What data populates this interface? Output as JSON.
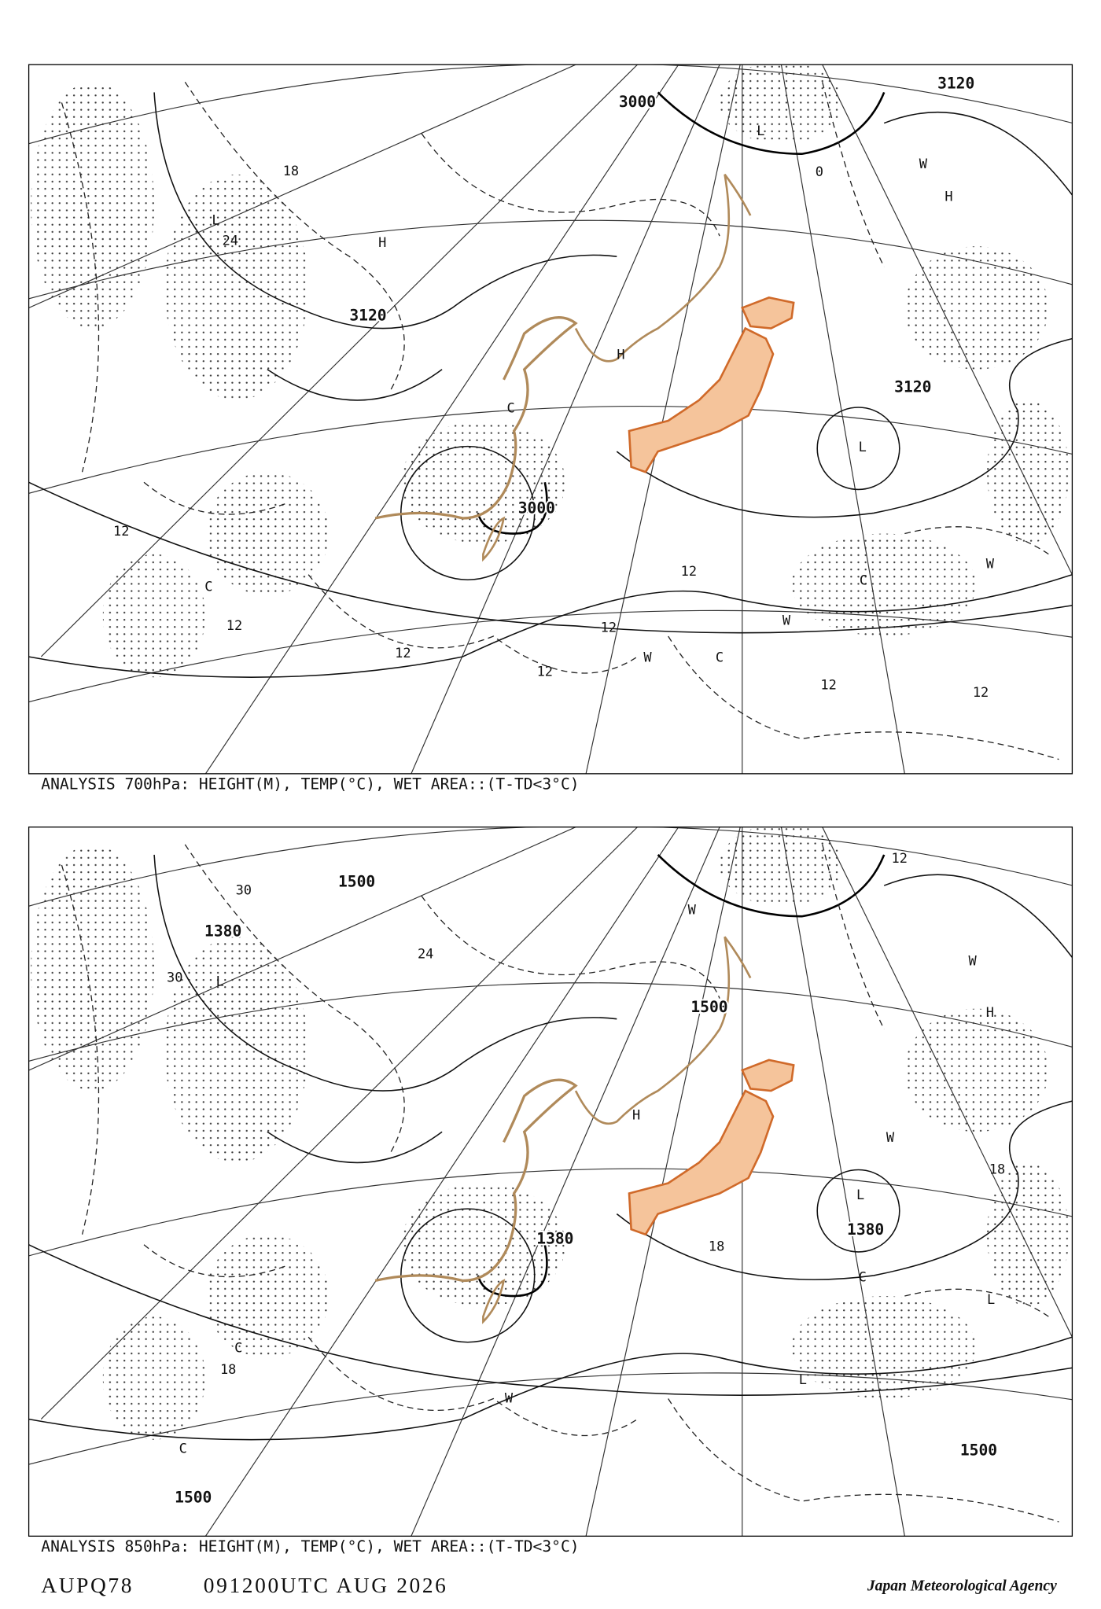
{
  "panels": [
    {
      "caption": "ANALYSIS 700hPa: HEIGHT(M), TEMP(°C), WET AREA::(T-TD<3°C)",
      "labels": [
        "3000",
        "3120",
        "3120",
        "3120",
        "3000",
        "12",
        "12",
        "12",
        "12",
        "12",
        "12",
        "12",
        "12",
        "H",
        "H",
        "H",
        "L",
        "L",
        "L",
        "W",
        "W",
        "W",
        "W",
        "C",
        "C",
        "C",
        "C",
        "18",
        "24",
        "0"
      ]
    },
    {
      "caption": "ANALYSIS 850hPa: HEIGHT(M), TEMP(°C), WET AREA::(T-TD<3°C)",
      "labels": [
        "1500",
        "1500",
        "1500",
        "1500",
        "1380",
        "1380",
        "1380",
        "30",
        "30",
        "24",
        "18",
        "18",
        "18",
        "12",
        "H",
        "H",
        "L",
        "L",
        "L",
        "L",
        "W",
        "W",
        "W",
        "W",
        "C",
        "C",
        "C"
      ]
    }
  ],
  "footer": {
    "code": "AUPQ78",
    "time": "091200UTC AUG 2026",
    "agency": "Japan Meteorological Agency"
  }
}
